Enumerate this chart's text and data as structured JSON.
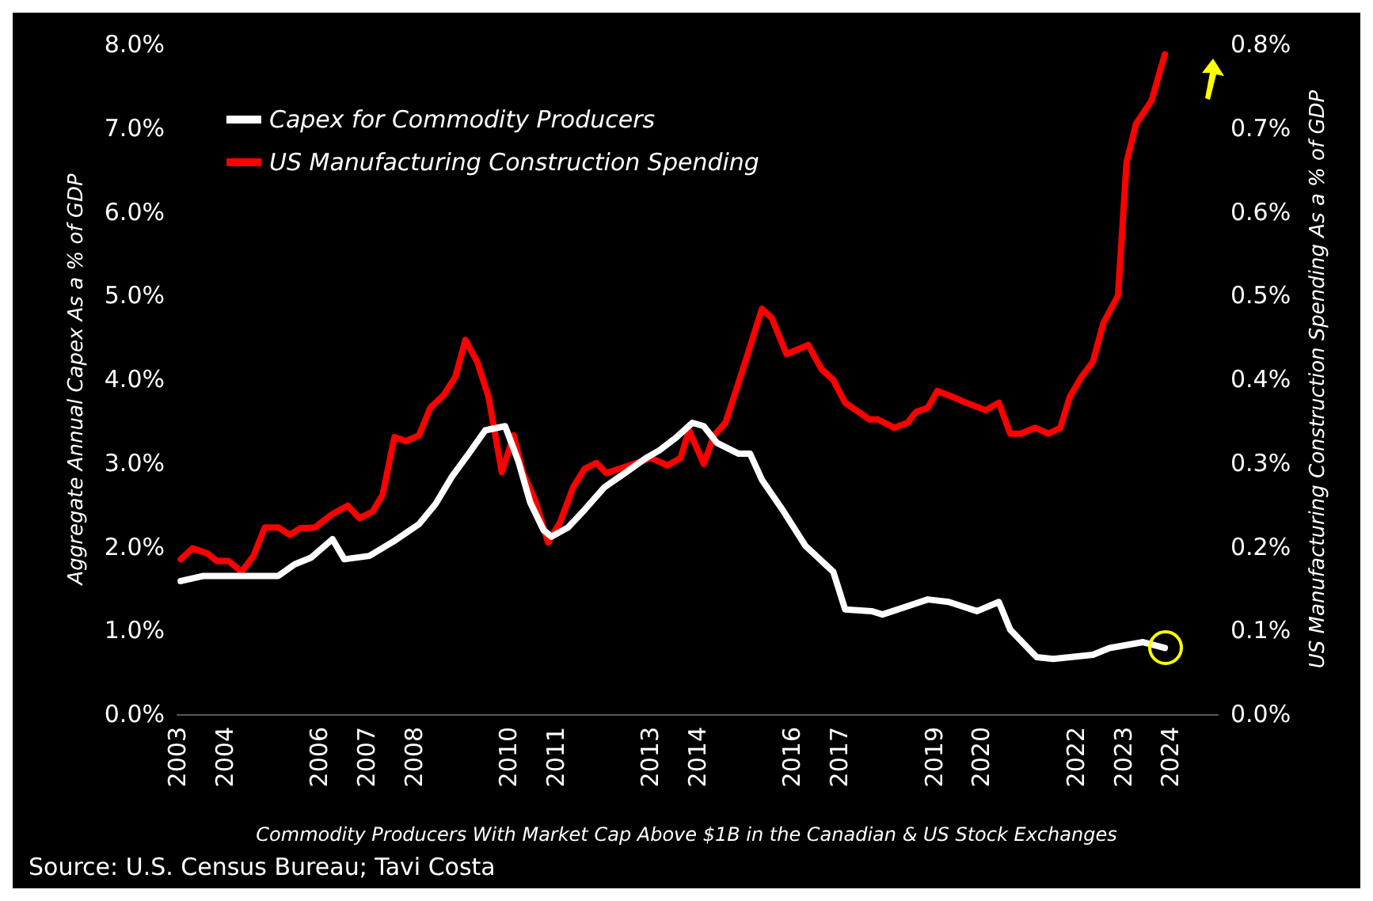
{
  "chart_data": {
    "type": "line",
    "ylabel": "Aggregate Annual Capex As a % of GDP",
    "y2label": "US Manufacturing Construction Spending As a % of GDP",
    "annotations": [
      "Commodity Producers With Market Cap Above $1B in the Canadian & US Stock Exchanges",
      "Source: U.S. Census Bureau; Tavi Costa"
    ],
    "legend": "top left",
    "grid": false,
    "marker": "none",
    "line_style": "solid",
    "xlim": [
      2003,
      2025
    ],
    "xticks": [
      2003,
      2004,
      2006,
      2007,
      2008,
      2010,
      2011,
      2013,
      2014,
      2016,
      2017,
      2019,
      2020,
      2022,
      2023,
      2024
    ],
    "ylim": [
      0,
      8
    ],
    "yticks": [
      {
        "value": 0,
        "label": "0.0%"
      },
      {
        "value": 1,
        "label": "1.0%"
      },
      {
        "value": 2,
        "label": "2.0%"
      },
      {
        "value": 3,
        "label": "3.0%"
      },
      {
        "value": 4,
        "label": "4.0%"
      },
      {
        "value": 5,
        "label": "5.0%"
      },
      {
        "value": 6,
        "label": "6.0%"
      },
      {
        "value": 7,
        "label": "7.0%"
      },
      {
        "value": 8,
        "label": "8.0%"
      }
    ],
    "y2lim": [
      0,
      0.8
    ],
    "y2ticks": [
      {
        "value": 0,
        "label": "0.0%"
      },
      {
        "value": 0.1,
        "label": "0.1%"
      },
      {
        "value": 0.2,
        "label": "0.2%"
      },
      {
        "value": 0.3,
        "label": "0.3%"
      },
      {
        "value": 0.4,
        "label": "0.4%"
      },
      {
        "value": 0.5,
        "label": "0.5%"
      },
      {
        "value": 0.6,
        "label": "0.6%"
      },
      {
        "value": 0.7,
        "label": "0.7%"
      },
      {
        "value": 0.8,
        "label": "0.8%"
      }
    ],
    "series": [
      {
        "name": "Capex for Commodity Producers",
        "color": "#ffffff",
        "x": [
          2003.07,
          2003.55,
          2004.26,
          2005.13,
          2005.48,
          2005.83,
          2006.28,
          2006.53,
          2007.06,
          2007.59,
          2008.11,
          2008.46,
          2008.81,
          2009.16,
          2009.51,
          2009.93,
          2010.21,
          2010.46,
          2010.74,
          2010.91,
          2011.26,
          2011.61,
          2012.03,
          2012.49,
          2012.91,
          2013.19,
          2013.54,
          2013.89,
          2014.13,
          2014.41,
          2014.87,
          2015.11,
          2015.36,
          2015.82,
          2016.28,
          2016.87,
          2017.12,
          2017.68,
          2017.91,
          2018.87,
          2019.31,
          2019.91,
          2020.37,
          2020.61,
          2021.17,
          2021.52,
          2022.36,
          2022.71,
          2023.42,
          2023.88
        ],
        "values": [
          1.59,
          1.65,
          1.65,
          1.65,
          1.79,
          1.87,
          2.09,
          1.85,
          1.89,
          2.07,
          2.27,
          2.51,
          2.84,
          3.11,
          3.39,
          3.44,
          3.02,
          2.53,
          2.2,
          2.12,
          2.23,
          2.44,
          2.71,
          2.89,
          3.06,
          3.15,
          3.3,
          3.48,
          3.44,
          3.24,
          3.11,
          3.11,
          2.8,
          2.42,
          2.01,
          1.7,
          1.25,
          1.23,
          1.19,
          1.37,
          1.34,
          1.23,
          1.34,
          1.01,
          0.68,
          0.66,
          0.71,
          0.79,
          0.86,
          0.79
        ]
      },
      {
        "name": "US Manufacturing Construction Spending",
        "color": "#ff0000",
        "axis": "y2",
        "x": [
          2003.07,
          2003.32,
          2003.63,
          2003.83,
          2004.08,
          2004.36,
          2004.61,
          2004.85,
          2005.13,
          2005.38,
          2005.59,
          2005.91,
          2006.25,
          2006.6,
          2006.85,
          2007.13,
          2007.34,
          2007.59,
          2007.83,
          2008.11,
          2008.35,
          2008.63,
          2008.88,
          2009.09,
          2009.34,
          2009.58,
          2009.86,
          2010.11,
          2010.31,
          2010.56,
          2010.84,
          2011.09,
          2011.37,
          2011.61,
          2011.86,
          2012.07,
          2012.55,
          2013.01,
          2013.36,
          2013.64,
          2013.82,
          2014.13,
          2014.35,
          2014.59,
          2015.01,
          2015.36,
          2015.57,
          2015.88,
          2016.34,
          2016.62,
          2016.87,
          2017.12,
          2017.63,
          2017.81,
          2018.16,
          2018.44,
          2018.62,
          2018.87,
          2019.07,
          2019.39,
          2019.67,
          2020.09,
          2020.37,
          2020.61,
          2020.83,
          2021.14,
          2021.42,
          2021.67,
          2021.87,
          2022.12,
          2022.36,
          2022.58,
          2022.89,
          2023.07,
          2023.27,
          2023.6,
          2023.88
        ],
        "values": [
          0.185,
          0.198,
          0.192,
          0.183,
          0.183,
          0.17,
          0.189,
          0.223,
          0.223,
          0.214,
          0.222,
          0.223,
          0.238,
          0.249,
          0.234,
          0.242,
          0.262,
          0.331,
          0.326,
          0.333,
          0.366,
          0.381,
          0.403,
          0.447,
          0.421,
          0.379,
          0.289,
          0.333,
          0.288,
          0.256,
          0.205,
          0.229,
          0.271,
          0.293,
          0.3,
          0.288,
          0.297,
          0.306,
          0.297,
          0.306,
          0.339,
          0.299,
          0.333,
          0.348,
          0.421,
          0.484,
          0.473,
          0.43,
          0.441,
          0.412,
          0.399,
          0.372,
          0.352,
          0.352,
          0.342,
          0.348,
          0.361,
          0.366,
          0.386,
          0.379,
          0.372,
          0.363,
          0.372,
          0.335,
          0.335,
          0.342,
          0.335,
          0.342,
          0.379,
          0.403,
          0.421,
          0.467,
          0.5,
          0.659,
          0.705,
          0.733,
          0.788
        ]
      }
    ]
  }
}
